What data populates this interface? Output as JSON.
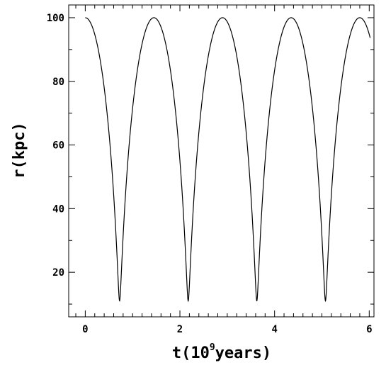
{
  "chart_data": {
    "type": "line",
    "xlabel": {
      "prefix": "t(10",
      "sup": "9",
      "suffix": "years)"
    },
    "ylabel": "r(kpc)",
    "xlim": [
      -0.35,
      6.1
    ],
    "ylim": [
      6,
      104
    ],
    "xticks": [
      {
        "value": 0,
        "label": "0"
      },
      {
        "value": 2,
        "label": "2"
      },
      {
        "value": 4,
        "label": "4"
      },
      {
        "value": 6,
        "label": "6"
      }
    ],
    "yticks": [
      {
        "value": 20,
        "label": "20"
      },
      {
        "value": 40,
        "label": "40"
      },
      {
        "value": 60,
        "label": "60"
      },
      {
        "value": 80,
        "label": "80"
      },
      {
        "value": 100,
        "label": "100"
      }
    ],
    "grid": false,
    "series": [
      {
        "name": "",
        "color": "#000000",
        "r_max": 100,
        "r_min": 11,
        "period": 1.45,
        "first_max_t": 0,
        "first_min_t": 0.72,
        "t_range": [
          0,
          6.02
        ]
      }
    ]
  }
}
